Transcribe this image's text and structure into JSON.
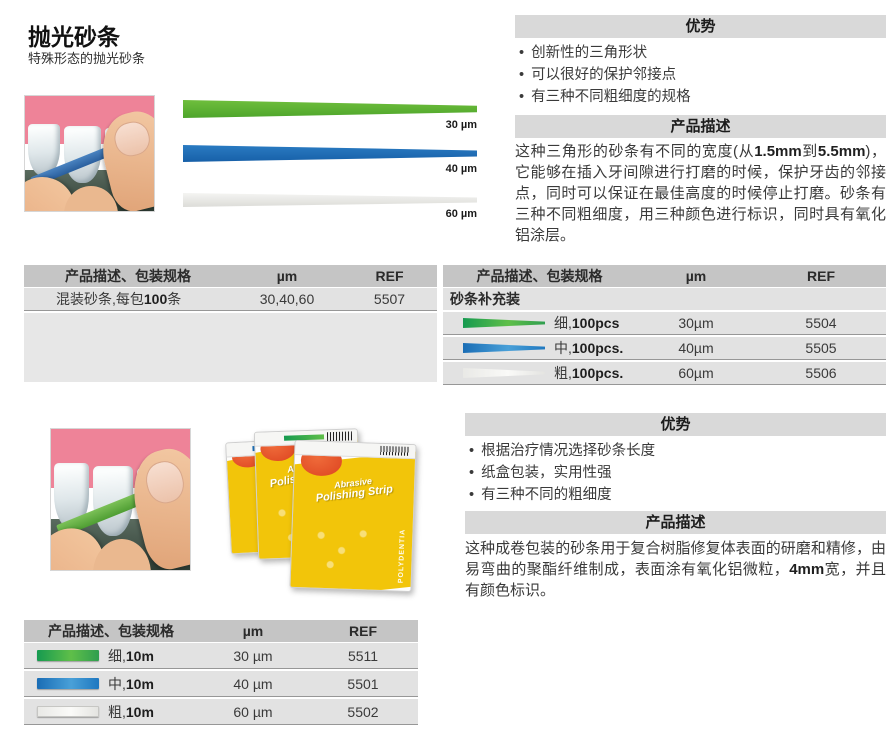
{
  "header": {
    "title": "抛光砂条",
    "subtitle": "特殊形态的抛光砂条"
  },
  "strips_figure": {
    "labels": [
      "30 µm",
      "40 µm",
      "60 µm"
    ]
  },
  "advantages_top": {
    "title": "优势",
    "bullets": [
      "创新性的三角形状",
      "可以很好的保护邻接点",
      "有三种不同粗细度的规格"
    ]
  },
  "description_top": {
    "title": "产品描述",
    "segments": [
      {
        "t": "这种三角形的砂条有不同的宽度(从"
      },
      {
        "t": "1.5mm",
        "b": true
      },
      {
        "t": "到"
      },
      {
        "t": "5.5mm",
        "b": true
      },
      {
        "t": ")，它能够在插入牙间隙进行打磨的时候，保护牙齿的邻接点，同时可以保证在最佳高度的时候停止打磨。砂条有三种不同粗细度，用三种颜色进行标识，同时具有氧化铝涂层。"
      }
    ]
  },
  "advantages_bottom": {
    "title": "优势",
    "bullets": [
      "根据治疗情况选择砂条长度",
      "纸盒包装，实用性强",
      "有三种不同的粗细度"
    ]
  },
  "description_bottom": {
    "title": "产品描述",
    "segments": [
      {
        "t": "这种成卷包装的砂条用于复合树脂修复体表面的研磨和精修，由易弯曲的聚酯纤维制成，表面涂有氧化铝微粒，"
      },
      {
        "t": "4mm",
        "b": true
      },
      {
        "t": "宽，并且有颜色标识。"
      }
    ]
  },
  "table_headers": {
    "desc": "产品描述、包装规格",
    "um": "µm",
    "ref": "REF"
  },
  "table_left": {
    "rows": [
      {
        "pre": "混装砂条,每包",
        "bold": "100",
        "post": "条",
        "um": "30,40,60",
        "ref": "5507"
      }
    ]
  },
  "table_right": {
    "group": "砂条补充装",
    "rows": [
      {
        "strip": "green",
        "pre": "细,",
        "bold": "100pcs",
        "post": "",
        "um": "30µm",
        "ref": "5504"
      },
      {
        "strip": "blue",
        "pre": "中,",
        "bold": "100pcs.",
        "post": "",
        "um": "40µm",
        "ref": "5505"
      },
      {
        "strip": "white",
        "pre": "粗,",
        "bold": "100pcs.",
        "post": "",
        "um": "60µm",
        "ref": "5506"
      }
    ]
  },
  "table_bottom": {
    "rows": [
      {
        "strip": "green",
        "pre": "细,",
        "bold": "10m",
        "post": "",
        "um": "30 µm",
        "ref": "5511"
      },
      {
        "strip": "blue",
        "pre": "中,",
        "bold": "10m",
        "post": "",
        "um": "40 µm",
        "ref": "5501"
      },
      {
        "strip": "white",
        "pre": "粗,",
        "bold": "10m",
        "post": "",
        "um": "60 µm",
        "ref": "5502"
      }
    ]
  },
  "product_box": {
    "script_line1": "Abrasive",
    "script_line2": "Polishing Strip",
    "side_text": "POLYDENTIA"
  },
  "colors": {
    "green_strip": "#4fae32",
    "blue_strip": "#1d6db6",
    "white_strip": "#ececea",
    "table_header_bg": "#c5c5c5",
    "row_bg": "#e2e2e2",
    "panel_header_bg": "#d9d9d9",
    "box_yellow": "#f2c50a",
    "box_red": "#dd4420"
  }
}
